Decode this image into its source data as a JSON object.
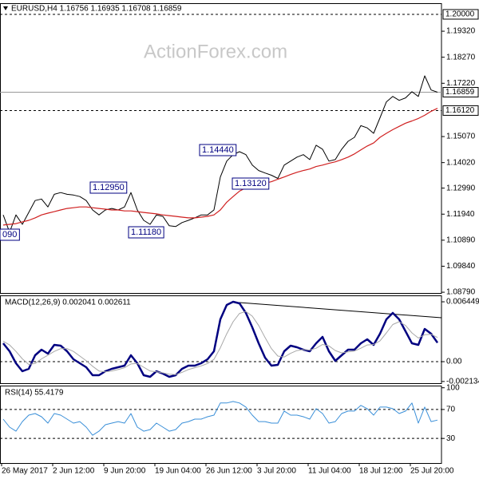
{
  "chart_data": [
    {
      "type": "line",
      "title": "EURUSD,H4  1.16756 1.16935 1.16708 1.16859",
      "watermark": "ActionForex.com",
      "ylim": [
        1.0876,
        1.2045
      ],
      "yticks": [
        {
          "value": 1.1932,
          "label": "1.19320"
        },
        {
          "value": 1.1827,
          "label": "1.18270"
        },
        {
          "value": 1.1722,
          "label": "1.17220"
        },
        {
          "value": 1.1507,
          "label": "1.15070"
        },
        {
          "value": 1.1402,
          "label": "1.14020"
        },
        {
          "value": 1.1299,
          "label": "1.12990"
        },
        {
          "value": 1.1194,
          "label": "1.11940"
        },
        {
          "value": 1.1089,
          "label": "1.10890"
        },
        {
          "value": 1.0984,
          "label": "1.09840"
        },
        {
          "value": 1.0879,
          "label": "1.08790"
        }
      ],
      "hlines": [
        {
          "value": 1.2,
          "label": "1.20000",
          "style": "dotted"
        },
        {
          "value": 1.16859,
          "label": "1.16859",
          "style": "solid"
        },
        {
          "value": 1.1612,
          "label": "1.16120",
          "style": "dotted"
        }
      ],
      "annotations": [
        "1.14440",
        "1.13120",
        "1.12950",
        "1.11180",
        "090"
      ],
      "series": [
        {
          "color": "#000000",
          "values": [
            1.1191,
            1.1121,
            1.1191,
            1.1153,
            1.1201,
            1.1249,
            1.1255,
            1.1223,
            1.1274,
            1.1281,
            1.1274,
            1.1271,
            1.1265,
            1.1249,
            1.1211,
            1.1191,
            1.1211,
            1.1217,
            1.1211,
            1.1223,
            1.1281,
            1.1211,
            1.1169,
            1.1153,
            1.1191,
            1.1185,
            1.1147,
            1.1144,
            1.116,
            1.1169,
            1.1179,
            1.1191,
            1.1191,
            1.1211,
            1.1344,
            1.1408,
            1.1434,
            1.1446,
            1.1434,
            1.1392,
            1.137,
            1.136,
            1.1351,
            1.1338,
            1.1392,
            1.1408,
            1.1424,
            1.1434,
            1.1414,
            1.1472,
            1.1456,
            1.1408,
            1.1414,
            1.1456,
            1.1488,
            1.1504,
            1.1551,
            1.1542,
            1.152,
            1.1583,
            1.1647,
            1.1669,
            1.1653,
            1.1663,
            1.1688,
            1.1669,
            1.1752,
            1.1695,
            1.1686
          ]
        },
        {
          "color": "#d02020",
          "values": [
            1.115,
            1.1153,
            1.1156,
            1.1163,
            1.1169,
            1.1179,
            1.1191,
            1.1198,
            1.1204,
            1.1211,
            1.1217,
            1.122,
            1.1223,
            1.1223,
            1.122,
            1.1217,
            1.1214,
            1.1211,
            1.1211,
            1.1207,
            1.1207,
            1.1204,
            1.1201,
            1.1198,
            1.1195,
            1.1191,
            1.1188,
            1.1185,
            1.1182,
            1.1179,
            1.1179,
            1.1182,
            1.1185,
            1.1191,
            1.1211,
            1.1242,
            1.1265,
            1.1287,
            1.13,
            1.1306,
            1.1313,
            1.1319,
            1.1325,
            1.1335,
            1.1344,
            1.1354,
            1.1363,
            1.137,
            1.1376,
            1.1386,
            1.1392,
            1.1399,
            1.1405,
            1.1414,
            1.1424,
            1.1437,
            1.1453,
            1.1469,
            1.1481,
            1.1504,
            1.152,
            1.1535,
            1.1548,
            1.1561,
            1.157,
            1.158,
            1.1593,
            1.1609,
            1.1621
          ]
        }
      ]
    },
    {
      "type": "line",
      "title": "MACD(12,26,9) 0.002041 0.002611",
      "ylim": [
        -0.00232,
        0.00714
      ],
      "yticks": [
        0.006449,
        {
          "value": 0,
          "label": "0.00"
        },
        -0.002134
      ],
      "hlines": [
        {
          "value": 0,
          "style": "dotted"
        }
      ],
      "series": [
        {
          "color": "#000080",
          "values": [
            0.00198,
            0.00112,
            -0.00017,
            -0.00103,
            -0.00077,
            0.00069,
            0.00129,
            0.00086,
            0.00181,
            0.00172,
            0.00112,
            0.00026,
            -0.00017,
            -0.0006,
            -0.00146,
            -0.00146,
            -0.00103,
            -0.00077,
            -0.0006,
            -0.00043,
            0.00069,
            -0.00017,
            -0.00146,
            -0.00163,
            -0.00103,
            -0.00129,
            -0.00163,
            -0.00146,
            -0.00077,
            -0.00043,
            -0.00043,
            -0.00017,
            0.00026,
            0.00112,
            0.00456,
            0.00611,
            0.00645,
            0.00628,
            0.00525,
            0.0037,
            0.00198,
            0.00043,
            -0.00043,
            -0.00034,
            0.00112,
            0.00172,
            0.00155,
            0.00129,
            0.00112,
            0.00198,
            0.00267,
            0.00112,
            9e-05,
            0.00069,
            0.00129,
            0.00129,
            0.00198,
            0.00241,
            0.00181,
            0.00301,
            0.00456,
            0.00525,
            0.00456,
            0.00327,
            0.00198,
            0.00181,
            0.00353,
            0.00301,
            0.002041
          ]
        },
        {
          "color": "#a8a8a8",
          "values": [
            0.0022,
            0.0018,
            0.0011,
            0.0003,
            -0.0003,
            -0.0002,
            0.0003,
            0.0007,
            0.0011,
            0.0014,
            0.0014,
            0.0011,
            0.0006,
            0.0001,
            -0.0005,
            -0.001,
            -0.0011,
            -0.001,
            -0.00085,
            -0.00065,
            -0.00025,
            -0.0002,
            -0.0006,
            -0.001,
            -0.0011,
            -0.0012,
            -0.00135,
            -0.0014,
            -0.00115,
            -0.00085,
            -0.00065,
            -0.00045,
            -0.0002,
            0.00025,
            0.0015,
            0.003,
            0.0043,
            0.0052,
            0.0054,
            0.0049,
            0.0039,
            0.0026,
            0.0014,
            0.0006,
            0.0005,
            0.0009,
            0.0012,
            0.0013,
            0.00125,
            0.00145,
            0.00185,
            0.0017,
            0.0012,
            0.00095,
            0.00105,
            0.00115,
            0.00145,
            0.0018,
            0.00185,
            0.00225,
            0.0031,
            0.004,
            0.0043,
            0.0039,
            0.0031,
            0.00255,
            0.0029,
            0.00295,
            0.002611
          ]
        }
      ]
    },
    {
      "type": "line",
      "title": "RSI(14) 55.4179",
      "ylim": [
        -4,
        103
      ],
      "yticks": [
        100,
        70,
        30
      ],
      "hlines": [
        {
          "value": 70,
          "style": "dotted"
        },
        {
          "value": 30,
          "style": "dotted"
        }
      ],
      "categories": [
        "26 May 2017",
        null,
        null,
        null,
        null,
        null,
        null,
        null,
        "2 Jun 12:00",
        null,
        null,
        null,
        null,
        null,
        null,
        null,
        "9 Jun 20:00",
        null,
        null,
        null,
        null,
        null,
        null,
        null,
        "19 Jun 04:00",
        null,
        null,
        null,
        null,
        null,
        null,
        null,
        "26 Jun 12:00",
        null,
        null,
        null,
        null,
        null,
        null,
        null,
        "3 Jul 20:00",
        null,
        null,
        null,
        null,
        null,
        null,
        null,
        "11 Jul 04:00",
        null,
        null,
        null,
        null,
        null,
        null,
        null,
        "18 Jul 12:00",
        null,
        null,
        null,
        null,
        null,
        null,
        null,
        "25 Jul 20:00",
        null,
        null,
        null,
        null
      ],
      "series": [
        {
          "color": "#3a8fd8",
          "values": [
            56.7,
            45.6,
            40.0,
            53.3,
            62.2,
            64.4,
            60.0,
            51.1,
            64.4,
            62.2,
            56.7,
            51.1,
            53.3,
            45.6,
            34.4,
            40.0,
            48.9,
            51.1,
            53.3,
            51.1,
            64.4,
            45.6,
            40.0,
            42.2,
            51.1,
            45.6,
            40.0,
            42.2,
            51.1,
            53.3,
            56.7,
            56.7,
            60.0,
            62.2,
            78.9,
            78.9,
            81.1,
            78.9,
            73.3,
            62.2,
            53.3,
            53.3,
            51.1,
            51.1,
            67.8,
            62.2,
            62.2,
            60.0,
            56.7,
            71.1,
            64.4,
            51.1,
            53.3,
            64.4,
            67.8,
            67.8,
            75.6,
            71.1,
            62.2,
            73.3,
            73.3,
            71.1,
            64.4,
            67.8,
            78.9,
            51.1,
            73.3,
            53.3,
            55.4
          ]
        }
      ]
    }
  ]
}
